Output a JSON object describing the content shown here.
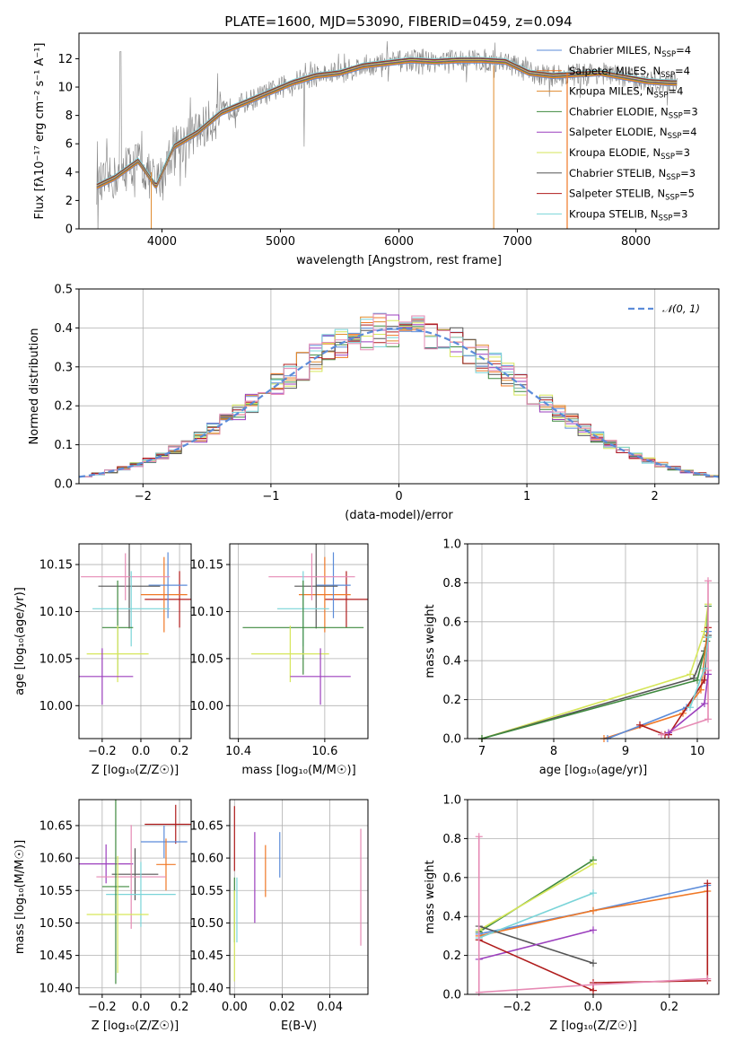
{
  "figure": {
    "title": "PLATE=1600, MJD=53090, FIBERID=0459, z=0.094"
  },
  "colors": {
    "chabrier_miles": "#5b8bd9",
    "salpeter_miles": "#f07826",
    "kroupa_miles": "#e08a2c",
    "chabrier_elodie": "#3f8a3f",
    "salpeter_elodie": "#9b3fbd",
    "kroupa_elodie": "#d6e65a",
    "chabrier_stelib": "#555555",
    "salpeter_stelib": "#b01c1c",
    "kroupa_stelib": "#7ad4d8",
    "pink": "#e68ab4",
    "data": "#808080",
    "normal": "#5b8bd9"
  },
  "chart_data": [
    {
      "id": "spectrum",
      "type": "line",
      "xlabel": "wavelength [Angstrom, rest frame]",
      "ylabel": "Flux [fλ10⁻¹⁷ erg cm⁻² s⁻¹ A⁻¹]",
      "xlim": [
        3300,
        8700
      ],
      "ylim": [
        0,
        13.8
      ],
      "xticks": [
        4000,
        5000,
        6000,
        7000,
        8000
      ],
      "yticks": [
        0,
        2,
        4,
        6,
        8,
        10,
        12
      ],
      "grid": false,
      "legend_position": "right",
      "continuum": {
        "x": [
          3450,
          3600,
          3800,
          3950,
          4100,
          4300,
          4500,
          4700,
          4900,
          5100,
          5300,
          5500,
          5700,
          5900,
          6100,
          6300,
          6500,
          6700,
          6900,
          7100,
          7300,
          7500,
          7700,
          7900,
          8100,
          8300
        ],
        "y": [
          3.0,
          3.6,
          4.8,
          3.0,
          5.8,
          6.8,
          8.2,
          8.9,
          9.6,
          10.3,
          10.8,
          11.0,
          11.5,
          11.7,
          11.9,
          11.8,
          11.9,
          11.9,
          11.8,
          11.0,
          10.8,
          10.9,
          11.0,
          10.7,
          10.4,
          10.3
        ]
      },
      "series": [
        {
          "name": "Chabrier MILES, N_SSP=4",
          "label_main": "Chabrier MILES, N",
          "sub": "SSP",
          "label_tail": "=4",
          "color_key": "chabrier_miles"
        },
        {
          "name": "Salpeter MILES, N_SSP=4",
          "label_main": "Salpeter MILES, N",
          "sub": "SSP",
          "label_tail": "=4",
          "color_key": "salpeter_miles"
        },
        {
          "name": "Kroupa MILES, N_SSP=4",
          "label_main": "Kroupa MILES, N",
          "sub": "SSP",
          "label_tail": "=4",
          "color_key": "kroupa_miles"
        },
        {
          "name": "Chabrier ELODIE, N_SSP=3",
          "label_main": "Chabrier ELODIE, N",
          "sub": "SSP",
          "label_tail": "=3",
          "color_key": "chabrier_elodie"
        },
        {
          "name": "Salpeter ELODIE, N_SSP=4",
          "label_main": "Salpeter ELODIE, N",
          "sub": "SSP",
          "label_tail": "=4",
          "color_key": "salpeter_elodie"
        },
        {
          "name": "Kroupa ELODIE, N_SSP=3",
          "label_main": "Kroupa ELODIE, N",
          "sub": "SSP",
          "label_tail": "=3",
          "color_key": "kroupa_elodie"
        },
        {
          "name": "Chabrier STELIB, N_SSP=3",
          "label_main": "Chabrier STELIB, N",
          "sub": "SSP",
          "label_tail": "=3",
          "color_key": "chabrier_stelib"
        },
        {
          "name": "Salpeter STELIB, N_SSP=5",
          "label_main": "Salpeter STELIB, N",
          "sub": "SSP",
          "label_tail": "=5",
          "color_key": "salpeter_stelib"
        },
        {
          "name": "Kroupa STELIB, N_SSP=3",
          "label_main": "Kroupa STELIB, N",
          "sub": "SSP",
          "label_tail": "=3",
          "color_key": "kroupa_stelib"
        }
      ]
    },
    {
      "id": "residuals",
      "type": "line",
      "xlabel": "(data-model)/error",
      "ylabel": "Normed distribution",
      "xlim": [
        -2.5,
        2.5
      ],
      "ylim": [
        0,
        0.5
      ],
      "xticks": [
        -2,
        -1,
        0,
        1,
        2
      ],
      "yticks": [
        0.0,
        0.1,
        0.2,
        0.3,
        0.4,
        0.5
      ],
      "grid": true,
      "legend_position": "top-right",
      "legend_label": "𝒩(0, 1)",
      "bin_width": 0.1
    },
    {
      "id": "age_vs_Z",
      "type": "scatter",
      "xlabel": "Z [log₁₀(Z/Z☉)]",
      "ylabel": "age  [log₁₀(age/yr)]",
      "xlim": [
        -0.32,
        0.26
      ],
      "ylim": [
        9.965,
        10.172
      ],
      "xticks": [
        -0.2,
        0.0,
        0.2
      ],
      "yticks": [
        10.0,
        10.05,
        10.1,
        10.15
      ],
      "grid": true,
      "points": [
        {
          "x": 0.2,
          "y": 10.113,
          "xerr": 0.18,
          "yerr": 0.03,
          "color_key": "salpeter_stelib"
        },
        {
          "x": 0.12,
          "y": 10.118,
          "xerr": 0.12,
          "yerr": 0.04,
          "color_key": "salpeter_miles"
        },
        {
          "x": 0.14,
          "y": 10.128,
          "xerr": 0.1,
          "yerr": 0.035,
          "color_key": "chabrier_miles"
        },
        {
          "x": -0.06,
          "y": 10.127,
          "xerr": 0.16,
          "yerr": 0.045,
          "color_key": "chabrier_stelib"
        },
        {
          "x": -0.08,
          "y": 10.137,
          "xerr": 0.23,
          "yerr": 0.025,
          "color_key": "pink"
        },
        {
          "x": -0.05,
          "y": 10.103,
          "xerr": 0.2,
          "yerr": 0.04,
          "color_key": "kroupa_stelib"
        },
        {
          "x": -0.12,
          "y": 10.083,
          "xerr": 0.08,
          "yerr": 0.05,
          "color_key": "chabrier_elodie"
        },
        {
          "x": -0.12,
          "y": 10.055,
          "xerr": 0.16,
          "yerr": 0.03,
          "color_key": "kroupa_elodie"
        },
        {
          "x": -0.2,
          "y": 10.031,
          "xerr": 0.16,
          "yerr": 0.03,
          "color_key": "salpeter_elodie"
        }
      ]
    },
    {
      "id": "age_vs_mass",
      "type": "scatter",
      "xlabel": "mass [log₁₀(M/M☉)]",
      "xlim": [
        10.38,
        10.7
      ],
      "ylim": [
        9.965,
        10.172
      ],
      "xticks": [
        10.4,
        10.6
      ],
      "yticks": [
        10.0,
        10.05,
        10.1,
        10.15
      ],
      "grid": true,
      "points": [
        {
          "x": 10.65,
          "y": 10.113,
          "xerr": 0.05,
          "yerr": 0.03,
          "color_key": "salpeter_stelib"
        },
        {
          "x": 10.6,
          "y": 10.118,
          "xerr": 0.06,
          "yerr": 0.04,
          "color_key": "salpeter_miles"
        },
        {
          "x": 10.62,
          "y": 10.128,
          "xerr": 0.04,
          "yerr": 0.035,
          "color_key": "chabrier_miles"
        },
        {
          "x": 10.58,
          "y": 10.127,
          "xerr": 0.05,
          "yerr": 0.045,
          "color_key": "chabrier_stelib"
        },
        {
          "x": 10.57,
          "y": 10.137,
          "xerr": 0.1,
          "yerr": 0.025,
          "color_key": "pink"
        },
        {
          "x": 10.55,
          "y": 10.103,
          "xerr": 0.06,
          "yerr": 0.04,
          "color_key": "kroupa_stelib"
        },
        {
          "x": 10.55,
          "y": 10.083,
          "xerr": 0.14,
          "yerr": 0.05,
          "color_key": "chabrier_elodie"
        },
        {
          "x": 10.52,
          "y": 10.055,
          "xerr": 0.09,
          "yerr": 0.03,
          "color_key": "kroupa_elodie"
        },
        {
          "x": 10.59,
          "y": 10.031,
          "xerr": 0.07,
          "yerr": 0.03,
          "color_key": "salpeter_elodie"
        }
      ]
    },
    {
      "id": "weight_vs_age",
      "type": "line",
      "xlabel": "age  [log₁₀(age/yr)]",
      "ylabel": "mass weight",
      "xlim": [
        6.8,
        10.3
      ],
      "ylim": [
        0,
        1.0
      ],
      "xticks": [
        7,
        8,
        9,
        10
      ],
      "yticks": [
        0.0,
        0.2,
        0.4,
        0.6,
        0.8,
        1.0
      ],
      "grid": true,
      "series": [
        {
          "color_key": "kroupa_elodie",
          "x": [
            7.0,
            9.9,
            10.1,
            10.15
          ],
          "y": [
            0.0,
            0.33,
            0.55,
            0.69
          ]
        },
        {
          "color_key": "chabrier_stelib",
          "x": [
            7.0,
            9.95,
            10.1,
            10.15
          ],
          "y": [
            0.0,
            0.31,
            0.45,
            0.53
          ]
        },
        {
          "color_key": "chabrier_elodie",
          "x": [
            7.0,
            10.0,
            10.13,
            10.15
          ],
          "y": [
            0.0,
            0.3,
            0.5,
            0.68
          ]
        },
        {
          "color_key": "salpeter_miles",
          "x": [
            8.7,
            9.8,
            10.05,
            10.13
          ],
          "y": [
            0.0,
            0.13,
            0.25,
            0.52
          ]
        },
        {
          "color_key": "chabrier_miles",
          "x": [
            8.75,
            9.85,
            10.1,
            10.15
          ],
          "y": [
            0.0,
            0.16,
            0.3,
            0.55
          ]
        },
        {
          "color_key": "salpeter_stelib",
          "x": [
            9.2,
            9.55,
            9.6,
            10.1,
            10.15
          ],
          "y": [
            0.07,
            0.02,
            0.02,
            0.3,
            0.57
          ]
        },
        {
          "color_key": "pink",
          "x": [
            9.5,
            10.15,
            10.15,
            10.15
          ],
          "y": [
            0.02,
            0.1,
            0.35,
            0.81
          ]
        },
        {
          "color_key": "salpeter_elodie",
          "x": [
            9.6,
            10.1,
            10.15
          ],
          "y": [
            0.03,
            0.18,
            0.33
          ]
        },
        {
          "color_key": "kroupa_stelib",
          "x": [
            9.9,
            10.1,
            10.15
          ],
          "y": [
            0.16,
            0.36,
            0.52
          ]
        }
      ]
    },
    {
      "id": "mass_vs_Z",
      "type": "scatter",
      "xlabel": "Z [log₁₀(Z/Z☉)]",
      "ylabel": "mass [log₁₀(M/M☉)]",
      "xlim": [
        -0.32,
        0.26
      ],
      "ylim": [
        10.39,
        10.69
      ],
      "xticks": [
        -0.2,
        0.0,
        0.2
      ],
      "yticks": [
        10.4,
        10.45,
        10.5,
        10.55,
        10.6,
        10.65
      ],
      "grid": true,
      "points": [
        {
          "x": 0.18,
          "y": 10.652,
          "xerr": 0.16,
          "yerr": 0.03,
          "color_key": "salpeter_stelib"
        },
        {
          "x": 0.12,
          "y": 10.625,
          "xerr": 0.12,
          "yerr": 0.025,
          "color_key": "chabrier_miles"
        },
        {
          "x": 0.13,
          "y": 10.59,
          "xerr": 0.05,
          "yerr": 0.04,
          "color_key": "salpeter_miles"
        },
        {
          "x": -0.18,
          "y": 10.591,
          "xerr": 0.14,
          "yerr": 0.03,
          "color_key": "salpeter_elodie"
        },
        {
          "x": -0.03,
          "y": 10.575,
          "xerr": 0.12,
          "yerr": 0.04,
          "color_key": "chabrier_stelib"
        },
        {
          "x": -0.05,
          "y": 10.571,
          "xerr": 0.18,
          "yerr": 0.08,
          "color_key": "pink"
        },
        {
          "x": 0.0,
          "y": 10.544,
          "xerr": 0.18,
          "yerr": 0.05,
          "color_key": "kroupa_stelib"
        },
        {
          "x": -0.13,
          "y": 10.556,
          "xerr": 0.07,
          "yerr": 0.15,
          "color_key": "chabrier_elodie"
        },
        {
          "x": -0.12,
          "y": 10.513,
          "xerr": 0.16,
          "yerr": 0.09,
          "color_key": "kroupa_elodie"
        }
      ]
    },
    {
      "id": "mass_vs_EBV",
      "type": "scatter",
      "xlabel": "E(B-V)",
      "xlim": [
        -0.002,
        0.056
      ],
      "ylim": [
        10.39,
        10.69
      ],
      "xticks": [
        0.0,
        0.02,
        0.04
      ],
      "yticks": [
        10.4,
        10.45,
        10.5,
        10.55,
        10.6,
        10.65
      ],
      "grid": true,
      "points": [
        {
          "x": 0.0,
          "y": 10.63,
          "yerr": 0.05,
          "color_key": "salpeter_stelib"
        },
        {
          "x": 0.0,
          "y": 10.52,
          "yerr": 0.05,
          "color_key": "chabrier_elodie"
        },
        {
          "x": 0.0,
          "y": 10.48,
          "yerr": 0.07,
          "color_key": "kroupa_elodie"
        },
        {
          "x": 0.001,
          "y": 10.52,
          "yerr": 0.05,
          "color_key": "kroupa_stelib"
        },
        {
          "x": 0.013,
          "y": 10.58,
          "yerr": 0.04,
          "color_key": "salpeter_miles"
        },
        {
          "x": 0.019,
          "y": 10.605,
          "yerr": 0.035,
          "color_key": "chabrier_miles"
        },
        {
          "x": 0.0085,
          "y": 10.57,
          "yerr": 0.07,
          "color_key": "salpeter_elodie"
        },
        {
          "x": 0.053,
          "y": 10.555,
          "yerr": 0.09,
          "color_key": "pink"
        }
      ]
    },
    {
      "id": "weight_vs_Z",
      "type": "line",
      "xlabel": "Z [log₁₀(Z/Z☉)]",
      "ylabel": "mass weight",
      "xlim": [
        -0.33,
        0.33
      ],
      "ylim": [
        0,
        1.0
      ],
      "xticks": [
        -0.2,
        0.0,
        0.2
      ],
      "yticks": [
        0.0,
        0.2,
        0.4,
        0.6,
        0.8,
        1.0
      ],
      "grid": true,
      "series": [
        {
          "color_key": "chabrier_miles",
          "x": [
            -0.3,
            0.0,
            0.3
          ],
          "y": [
            0.31,
            0.43,
            0.56
          ]
        },
        {
          "color_key": "salpeter_miles",
          "x": [
            -0.3,
            0.0,
            0.3
          ],
          "y": [
            0.3,
            0.43,
            0.53
          ]
        },
        {
          "color_key": "chabrier_elodie",
          "x": [
            -0.3,
            0.0
          ],
          "y": [
            0.32,
            0.69
          ]
        },
        {
          "color_key": "kroupa_elodie",
          "x": [
            -0.3,
            0.0
          ],
          "y": [
            0.33,
            0.67
          ]
        },
        {
          "color_key": "kroupa_stelib",
          "x": [
            -0.3,
            0.0
          ],
          "y": [
            0.29,
            0.52
          ]
        },
        {
          "color_key": "chabrier_stelib",
          "x": [
            -0.3,
            0.0
          ],
          "y": [
            0.35,
            0.16
          ]
        },
        {
          "color_key": "salpeter_elodie",
          "x": [
            -0.3,
            0.0
          ],
          "y": [
            0.18,
            0.33
          ]
        },
        {
          "color_key": "salpeter_stelib",
          "x": [
            -0.3,
            0.0,
            0.0,
            0.3,
            0.3
          ],
          "y": [
            0.28,
            0.02,
            0.06,
            0.07,
            0.57
          ]
        },
        {
          "color_key": "pink",
          "x": [
            -0.3,
            -0.3,
            0.0,
            0.3
          ],
          "y": [
            0.81,
            0.01,
            0.05,
            0.08
          ]
        }
      ]
    }
  ]
}
